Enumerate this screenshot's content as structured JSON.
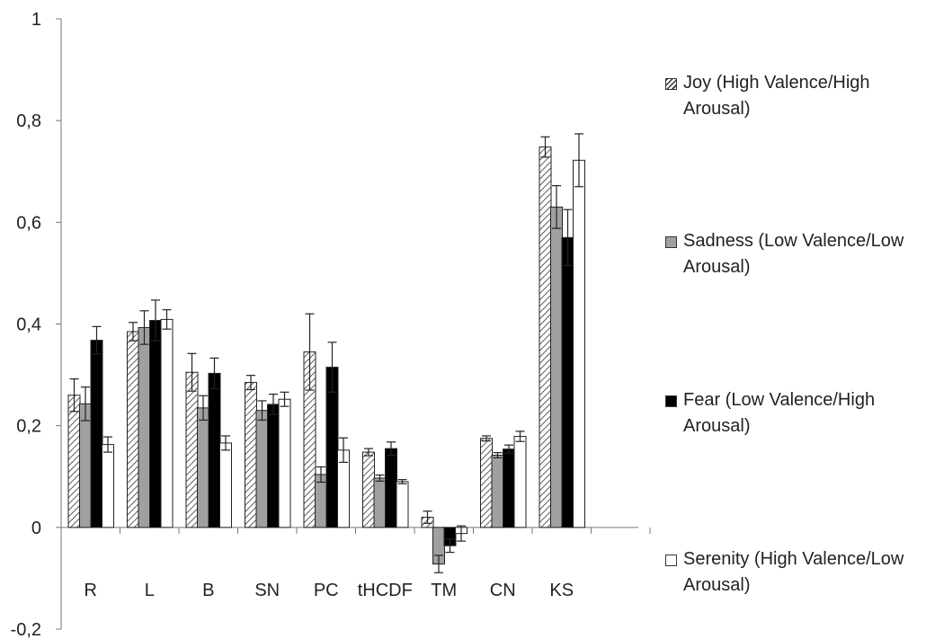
{
  "chart_data": {
    "type": "bar",
    "categories": [
      "R",
      "L",
      "B",
      "SN",
      "PC",
      "tHCDF",
      "TM",
      "CN",
      "KS"
    ],
    "series": [
      {
        "name": "Joy (High Valence/High Arousal)",
        "fill": "hatch",
        "values": [
          0.26,
          0.385,
          0.305,
          0.285,
          0.345,
          0.148,
          0.02,
          0.175,
          0.748
        ],
        "errors": [
          0.032,
          0.018,
          0.037,
          0.014,
          0.075,
          0.007,
          0.012,
          0.005,
          0.02
        ]
      },
      {
        "name": "Sadness (Low Valence/Low Arousal)",
        "fill": "#a0a0a0",
        "values": [
          0.243,
          0.393,
          0.235,
          0.23,
          0.104,
          0.097,
          -0.072,
          0.142,
          0.63
        ],
        "errors": [
          0.033,
          0.033,
          0.024,
          0.019,
          0.015,
          0.006,
          0.017,
          0.005,
          0.042
        ]
      },
      {
        "name": "Fear (Low Valence/High Arousal)",
        "fill": "#000000",
        "values": [
          0.368,
          0.407,
          0.303,
          0.242,
          0.315,
          0.155,
          -0.036,
          0.154,
          0.57
        ],
        "errors": [
          0.027,
          0.04,
          0.03,
          0.02,
          0.049,
          0.013,
          0.013,
          0.008,
          0.055
        ]
      },
      {
        "name": "Serenity (High Valence/Low Arousal)",
        "fill": "#ffffff",
        "values": [
          0.163,
          0.409,
          0.166,
          0.252,
          0.152,
          0.09,
          -0.012,
          0.179,
          0.722
        ],
        "errors": [
          0.015,
          0.019,
          0.014,
          0.014,
          0.024,
          0.004,
          0.015,
          0.01,
          0.052
        ]
      }
    ],
    "y_ticks": [
      "-0,2",
      "0",
      "0,2",
      "0,4",
      "0,6",
      "0,8",
      "1"
    ],
    "ylim": [
      -0.2,
      1
    ],
    "legend_position": "right",
    "grid": false,
    "error_bars": true
  }
}
